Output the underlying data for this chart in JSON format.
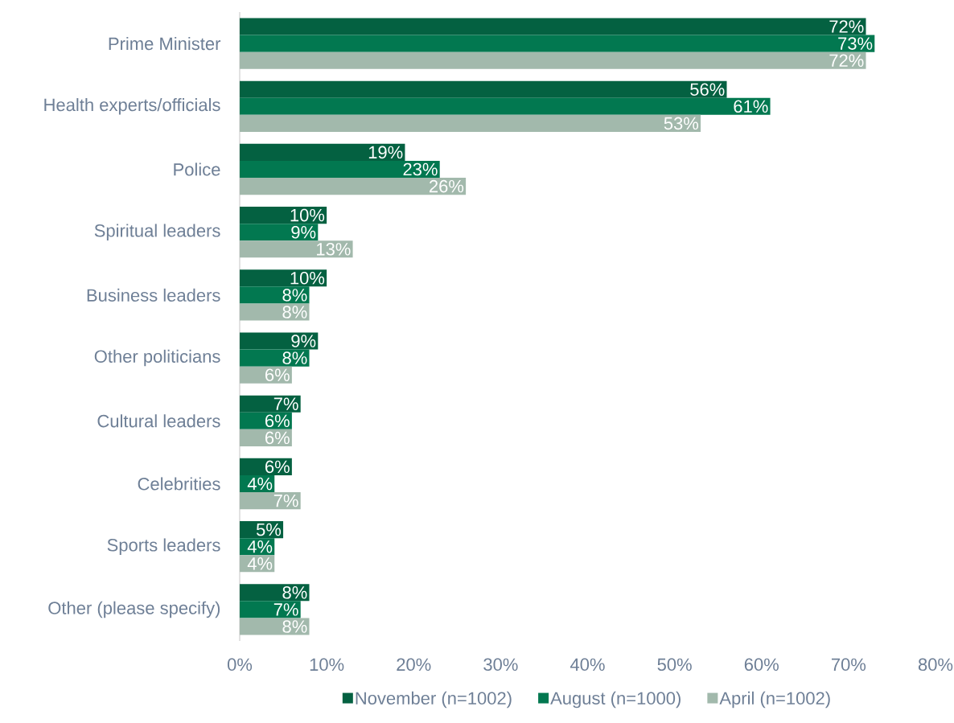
{
  "chart_data": {
    "type": "bar",
    "orientation": "horizontal",
    "categories": [
      "Prime Minister",
      "Health experts/officials",
      "Police",
      "Spiritual leaders",
      "Business leaders",
      "Other politicians",
      "Cultural leaders",
      "Celebrities",
      "Sports leaders",
      "Other (please specify)"
    ],
    "series": [
      {
        "name": "November (n=1002)",
        "color": "#046141",
        "values": [
          72,
          56,
          19,
          10,
          10,
          9,
          7,
          6,
          5,
          8
        ],
        "value_labels": [
          "72%",
          "56%",
          "19%",
          "10%",
          "10%",
          "9%",
          "7%",
          "6%",
          "5%",
          "8%"
        ]
      },
      {
        "name": "August (n=1000)",
        "color": "#027850",
        "values": [
          73,
          61,
          23,
          9,
          8,
          8,
          6,
          4,
          4,
          7
        ],
        "value_labels": [
          "73%",
          "61%",
          "23%",
          "9%",
          "8%",
          "8%",
          "6%",
          "4%",
          "4%",
          "7%"
        ]
      },
      {
        "name": "April (n=1002)",
        "color": "#a2b9ac",
        "values": [
          72,
          53,
          26,
          13,
          8,
          6,
          6,
          7,
          4,
          8
        ],
        "value_labels": [
          "72%",
          "53%",
          "26%",
          "13%",
          "8%",
          "6%",
          "6%",
          "7%",
          "4%",
          "8%"
        ]
      }
    ],
    "xlim": [
      0,
      80
    ],
    "xticks": [
      {
        "value": 0,
        "label": "0%"
      },
      {
        "value": 10,
        "label": "10%"
      },
      {
        "value": 20,
        "label": "20%"
      },
      {
        "value": 30,
        "label": "30%"
      },
      {
        "value": 40,
        "label": "40%"
      },
      {
        "value": 50,
        "label": "50%"
      },
      {
        "value": 60,
        "label": "60%"
      },
      {
        "value": 70,
        "label": "70%"
      },
      {
        "value": 80,
        "label": "80%"
      }
    ],
    "legend": "bottom"
  }
}
